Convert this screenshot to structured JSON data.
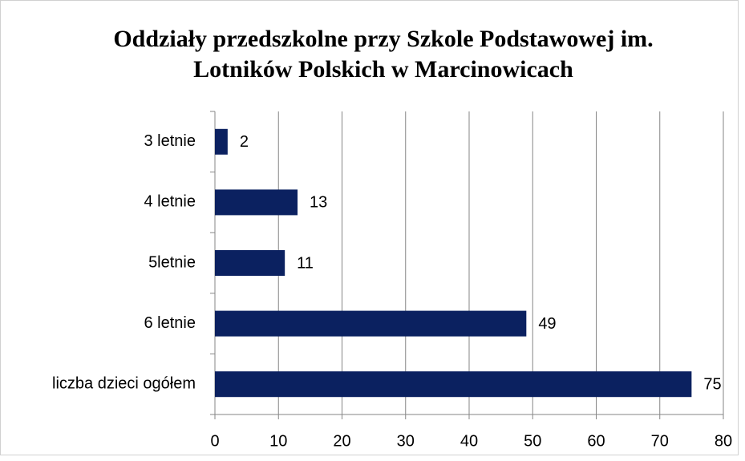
{
  "chart_data": {
    "type": "bar",
    "orientation": "horizontal",
    "title": "Oddziały przedszkolne przy Szkole Podstawowej im. Lotników Polskich w Marcinowicach",
    "categories": [
      "3 letnie",
      "4 letnie",
      "5letnie",
      "6 letnie",
      "liczba dzieci ogółem"
    ],
    "values": [
      2,
      13,
      11,
      49,
      75
    ],
    "color": "#0b2160",
    "xlim": [
      0,
      80
    ],
    "xticks": [
      0,
      10,
      20,
      30,
      40,
      50,
      60,
      70,
      80
    ],
    "grid": true
  }
}
